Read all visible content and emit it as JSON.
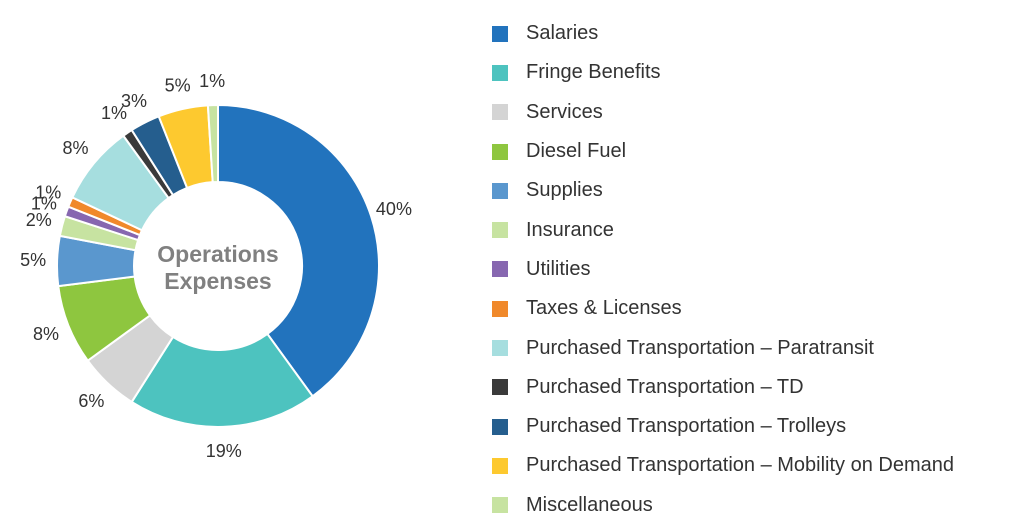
{
  "chart_data": {
    "type": "pie",
    "title": "Operations Expenses",
    "categories": [
      "Salaries",
      "Fringe Benefits",
      "Services",
      "Diesel Fuel",
      "Supplies",
      "Insurance",
      "Utilities",
      "Taxes & Licenses",
      "Purchased Transportation – Paratransit",
      "Purchased Transportation – TD",
      "Purchased Transportation – Trolleys",
      "Purchased Transportation – Mobility on Demand",
      "Miscellaneous"
    ],
    "values": [
      40,
      19,
      6,
      8,
      5,
      2,
      1,
      1,
      8,
      1,
      3,
      5,
      1
    ],
    "labels": [
      "40%",
      "19%",
      "6%",
      "8%",
      "5%",
      "2%",
      "1%",
      "1%",
      "8%",
      "1%",
      "3%",
      "5%",
      "1%"
    ],
    "colors": [
      "#2273BD",
      "#4DC3BF",
      "#D4D4D4",
      "#8EC63F",
      "#5A97CE",
      "#C7E3A1",
      "#8767B0",
      "#F0892B",
      "#A6DEDF",
      "#3A3A3A",
      "#255E8E",
      "#FDC92F",
      "#C7E3A1"
    ],
    "legend_position": "right",
    "donut": true
  }
}
